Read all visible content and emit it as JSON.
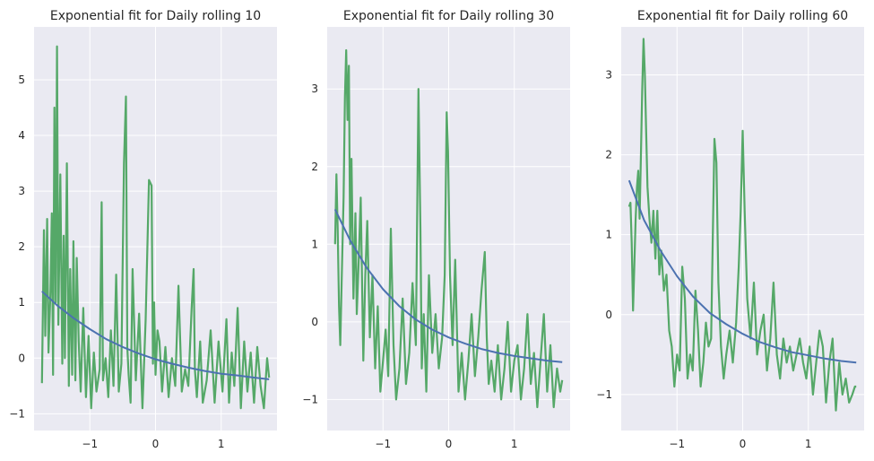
{
  "colors": {
    "background": "#eaeaf2",
    "grid": "#ffffff",
    "fit_line": "#4c72b0",
    "data_line": "#55a868",
    "text": "#262626"
  },
  "chart_data": [
    {
      "type": "line",
      "title": "Exponential fit for Daily rolling 10",
      "xlabel": "",
      "ylabel": "",
      "xlim": [
        -1.85,
        1.85
      ],
      "ylim": [
        -1.3,
        5.95
      ],
      "xticks": [
        -1,
        0,
        1
      ],
      "xtick_labels": [
        "−1",
        "0",
        "1"
      ],
      "yticks": [
        -1,
        0,
        1,
        2,
        3,
        4,
        5
      ],
      "ytick_labels": [
        "−1",
        "0",
        "1",
        "2",
        "3",
        "4",
        "5"
      ],
      "grid": true,
      "series": [
        {
          "kind": "fit",
          "color": "#4c72b0",
          "x": [
            -1.73,
            -1.5,
            -1.25,
            -1.0,
            -0.75,
            -0.5,
            -0.25,
            0.0,
            0.25,
            0.5,
            0.75,
            1.0,
            1.25,
            1.5,
            1.73
          ],
          "y": [
            1.2,
            0.95,
            0.72,
            0.52,
            0.34,
            0.2,
            0.08,
            -0.02,
            -0.1,
            -0.17,
            -0.23,
            -0.28,
            -0.31,
            -0.35,
            -0.38
          ]
        },
        {
          "kind": "data",
          "color": "#55a868",
          "x": [
            -1.73,
            -1.7,
            -1.68,
            -1.65,
            -1.63,
            -1.6,
            -1.58,
            -1.56,
            -1.54,
            -1.52,
            -1.5,
            -1.48,
            -1.45,
            -1.42,
            -1.4,
            -1.38,
            -1.35,
            -1.32,
            -1.3,
            -1.27,
            -1.25,
            -1.22,
            -1.2,
            -1.17,
            -1.14,
            -1.1,
            -1.06,
            -1.02,
            -0.98,
            -0.94,
            -0.9,
            -0.85,
            -0.82,
            -0.8,
            -0.76,
            -0.72,
            -0.68,
            -0.64,
            -0.6,
            -0.56,
            -0.52,
            -0.48,
            -0.45,
            -0.43,
            -0.41,
            -0.38,
            -0.35,
            -0.3,
            -0.25,
            -0.2,
            -0.15,
            -0.1,
            -0.06,
            -0.04,
            -0.02,
            0.0,
            0.03,
            0.06,
            0.1,
            0.15,
            0.2,
            0.25,
            0.3,
            0.35,
            0.4,
            0.45,
            0.5,
            0.55,
            0.58,
            0.6,
            0.63,
            0.68,
            0.72,
            0.78,
            0.84,
            0.9,
            0.96,
            1.02,
            1.08,
            1.12,
            1.16,
            1.2,
            1.25,
            1.3,
            1.35,
            1.4,
            1.45,
            1.5,
            1.55,
            1.6,
            1.65,
            1.7,
            1.73
          ],
          "y": [
            -0.45,
            2.3,
            0.4,
            2.5,
            0.1,
            1.2,
            2.6,
            -0.3,
            4.5,
            1.0,
            5.6,
            0.6,
            3.3,
            -0.1,
            2.2,
            0.0,
            3.5,
            -0.5,
            1.6,
            -0.3,
            2.1,
            -0.4,
            1.8,
            0.3,
            -0.6,
            0.9,
            -0.7,
            0.4,
            -0.9,
            0.1,
            -0.6,
            -0.2,
            2.8,
            -0.4,
            0.0,
            -0.7,
            0.5,
            -0.5,
            1.5,
            -0.6,
            -0.1,
            3.5,
            4.7,
            0.2,
            -0.3,
            -0.8,
            1.6,
            -0.4,
            0.8,
            -0.9,
            0.7,
            3.2,
            3.1,
            -0.1,
            1.0,
            -0.3,
            0.5,
            0.3,
            -0.6,
            0.2,
            -0.7,
            0.0,
            -0.5,
            1.3,
            -0.6,
            -0.2,
            -0.5,
            0.9,
            1.6,
            -0.2,
            -0.7,
            0.3,
            -0.8,
            -0.4,
            0.5,
            -0.8,
            0.3,
            -0.6,
            0.7,
            -0.8,
            0.1,
            -0.5,
            0.9,
            -0.9,
            0.3,
            -0.6,
            0.1,
            -0.8,
            0.2,
            -0.5,
            -0.9,
            0.0,
            -0.35
          ]
        }
      ]
    },
    {
      "type": "line",
      "title": "Exponential fit for Daily rolling 30",
      "xlabel": "",
      "ylabel": "",
      "xlim": [
        -1.85,
        1.85
      ],
      "ylim": [
        -1.4,
        3.8
      ],
      "xticks": [
        -1,
        0,
        1
      ],
      "xtick_labels": [
        "−1",
        "0",
        "1"
      ],
      "yticks": [
        -1,
        0,
        1,
        2,
        3
      ],
      "ytick_labels": [
        "−1",
        "0",
        "1",
        "2",
        "3"
      ],
      "grid": true,
      "series": [
        {
          "kind": "fit",
          "color": "#4c72b0",
          "x": [
            -1.73,
            -1.5,
            -1.25,
            -1.0,
            -0.75,
            -0.5,
            -0.25,
            0.0,
            0.25,
            0.5,
            0.75,
            1.0,
            1.25,
            1.5,
            1.73
          ],
          "y": [
            1.45,
            1.05,
            0.7,
            0.42,
            0.2,
            0.03,
            -0.1,
            -0.2,
            -0.28,
            -0.35,
            -0.4,
            -0.44,
            -0.47,
            -0.5,
            -0.52
          ]
        },
        {
          "kind": "data",
          "color": "#55a868",
          "x": [
            -1.73,
            -1.71,
            -1.69,
            -1.67,
            -1.65,
            -1.63,
            -1.6,
            -1.58,
            -1.56,
            -1.54,
            -1.52,
            -1.5,
            -1.48,
            -1.45,
            -1.42,
            -1.4,
            -1.37,
            -1.34,
            -1.3,
            -1.27,
            -1.24,
            -1.2,
            -1.16,
            -1.12,
            -1.08,
            -1.04,
            -1.0,
            -0.96,
            -0.92,
            -0.88,
            -0.84,
            -0.8,
            -0.75,
            -0.7,
            -0.65,
            -0.6,
            -0.55,
            -0.5,
            -0.46,
            -0.43,
            -0.41,
            -0.38,
            -0.34,
            -0.3,
            -0.25,
            -0.2,
            -0.15,
            -0.1,
            -0.06,
            -0.03,
            -0.01,
            0.02,
            0.06,
            0.1,
            0.15,
            0.2,
            0.25,
            0.3,
            0.35,
            0.4,
            0.45,
            0.5,
            0.55,
            0.58,
            0.61,
            0.65,
            0.7,
            0.75,
            0.8,
            0.85,
            0.9,
            0.95,
            1.0,
            1.05,
            1.1,
            1.15,
            1.2,
            1.25,
            1.3,
            1.35,
            1.4,
            1.45,
            1.5,
            1.55,
            1.6,
            1.65,
            1.7,
            1.73
          ],
          "y": [
            1.0,
            1.9,
            1.2,
            0.2,
            -0.3,
            0.5,
            1.6,
            2.9,
            3.5,
            2.6,
            3.3,
            1.0,
            2.1,
            0.3,
            1.4,
            0.1,
            0.8,
            1.6,
            -0.5,
            0.6,
            1.3,
            -0.2,
            0.6,
            -0.6,
            0.2,
            -0.9,
            -0.5,
            -0.1,
            -0.7,
            1.2,
            -0.3,
            -1.0,
            -0.6,
            0.3,
            -0.8,
            -0.4,
            0.5,
            -0.3,
            3.0,
            1.2,
            -0.6,
            0.1,
            -0.9,
            0.6,
            -0.4,
            0.1,
            -0.6,
            -0.2,
            0.6,
            2.7,
            2.2,
            0.6,
            -0.3,
            0.8,
            -0.9,
            -0.4,
            -1.0,
            -0.5,
            0.1,
            -0.7,
            -0.2,
            0.4,
            0.9,
            -0.2,
            -0.8,
            -0.5,
            -0.9,
            -0.3,
            -1.0,
            -0.6,
            0.0,
            -0.9,
            -0.5,
            -0.3,
            -1.0,
            -0.6,
            0.1,
            -0.8,
            -0.4,
            -1.1,
            -0.5,
            0.1,
            -0.9,
            -0.3,
            -1.1,
            -0.6,
            -0.9,
            -0.75
          ]
        }
      ]
    },
    {
      "type": "line",
      "title": "Exponential fit for Daily rolling 60",
      "xlabel": "",
      "ylabel": "",
      "xlim": [
        -1.85,
        1.85
      ],
      "ylim": [
        -1.45,
        3.6
      ],
      "xticks": [
        -1,
        0,
        1
      ],
      "xtick_labels": [
        "−1",
        "0",
        "1"
      ],
      "yticks": [
        -1,
        0,
        1,
        2,
        3
      ],
      "ytick_labels": [
        "−1",
        "0",
        "1",
        "2",
        "3"
      ],
      "grid": true,
      "series": [
        {
          "kind": "fit",
          "color": "#4c72b0",
          "x": [
            -1.73,
            -1.5,
            -1.25,
            -1.0,
            -0.75,
            -0.5,
            -0.25,
            0.0,
            0.25,
            0.5,
            0.75,
            1.0,
            1.25,
            1.5,
            1.73
          ],
          "y": [
            1.68,
            1.18,
            0.8,
            0.48,
            0.22,
            0.02,
            -0.12,
            -0.24,
            -0.34,
            -0.41,
            -0.47,
            -0.51,
            -0.55,
            -0.58,
            -0.6
          ]
        },
        {
          "kind": "data",
          "color": "#55a868",
          "x": [
            -1.73,
            -1.71,
            -1.69,
            -1.67,
            -1.65,
            -1.63,
            -1.61,
            -1.59,
            -1.57,
            -1.55,
            -1.53,
            -1.51,
            -1.49,
            -1.47,
            -1.45,
            -1.42,
            -1.39,
            -1.36,
            -1.33,
            -1.3,
            -1.27,
            -1.24,
            -1.2,
            -1.16,
            -1.12,
            -1.08,
            -1.04,
            -1.0,
            -0.96,
            -0.92,
            -0.88,
            -0.84,
            -0.8,
            -0.76,
            -0.72,
            -0.68,
            -0.64,
            -0.6,
            -0.56,
            -0.52,
            -0.48,
            -0.45,
            -0.43,
            -0.4,
            -0.37,
            -0.33,
            -0.29,
            -0.25,
            -0.2,
            -0.15,
            -0.1,
            -0.06,
            -0.03,
            0.0,
            0.03,
            0.07,
            0.12,
            0.17,
            0.22,
            0.27,
            0.32,
            0.37,
            0.42,
            0.47,
            0.52,
            0.57,
            0.62,
            0.67,
            0.72,
            0.77,
            0.82,
            0.87,
            0.92,
            0.97,
            1.02,
            1.07,
            1.12,
            1.17,
            1.22,
            1.27,
            1.32,
            1.37,
            1.42,
            1.47,
            1.52,
            1.57,
            1.62,
            1.67,
            1.71,
            1.73
          ],
          "y": [
            1.35,
            1.4,
            0.9,
            0.05,
            0.6,
            1.2,
            1.6,
            1.8,
            1.2,
            2.0,
            2.8,
            3.45,
            3.0,
            2.3,
            1.6,
            1.2,
            0.9,
            1.3,
            0.7,
            1.3,
            0.5,
            0.8,
            0.3,
            0.5,
            -0.2,
            -0.4,
            -0.9,
            -0.5,
            -0.7,
            0.6,
            0.2,
            -0.8,
            -0.5,
            -0.7,
            0.3,
            -0.2,
            -0.9,
            -0.6,
            -0.1,
            -0.4,
            -0.3,
            1.2,
            2.2,
            1.9,
            0.4,
            -0.4,
            -0.8,
            -0.5,
            -0.2,
            -0.6,
            -0.1,
            0.6,
            1.3,
            2.3,
            1.3,
            0.2,
            -0.3,
            0.4,
            -0.5,
            -0.2,
            0.0,
            -0.7,
            -0.3,
            0.4,
            -0.5,
            -0.8,
            -0.3,
            -0.6,
            -0.4,
            -0.7,
            -0.5,
            -0.3,
            -0.6,
            -0.8,
            -0.4,
            -1.0,
            -0.6,
            -0.2,
            -0.4,
            -1.1,
            -0.6,
            -0.3,
            -1.2,
            -0.6,
            -1.0,
            -0.8,
            -1.1,
            -1.0,
            -0.9,
            -0.9
          ]
        }
      ]
    }
  ]
}
